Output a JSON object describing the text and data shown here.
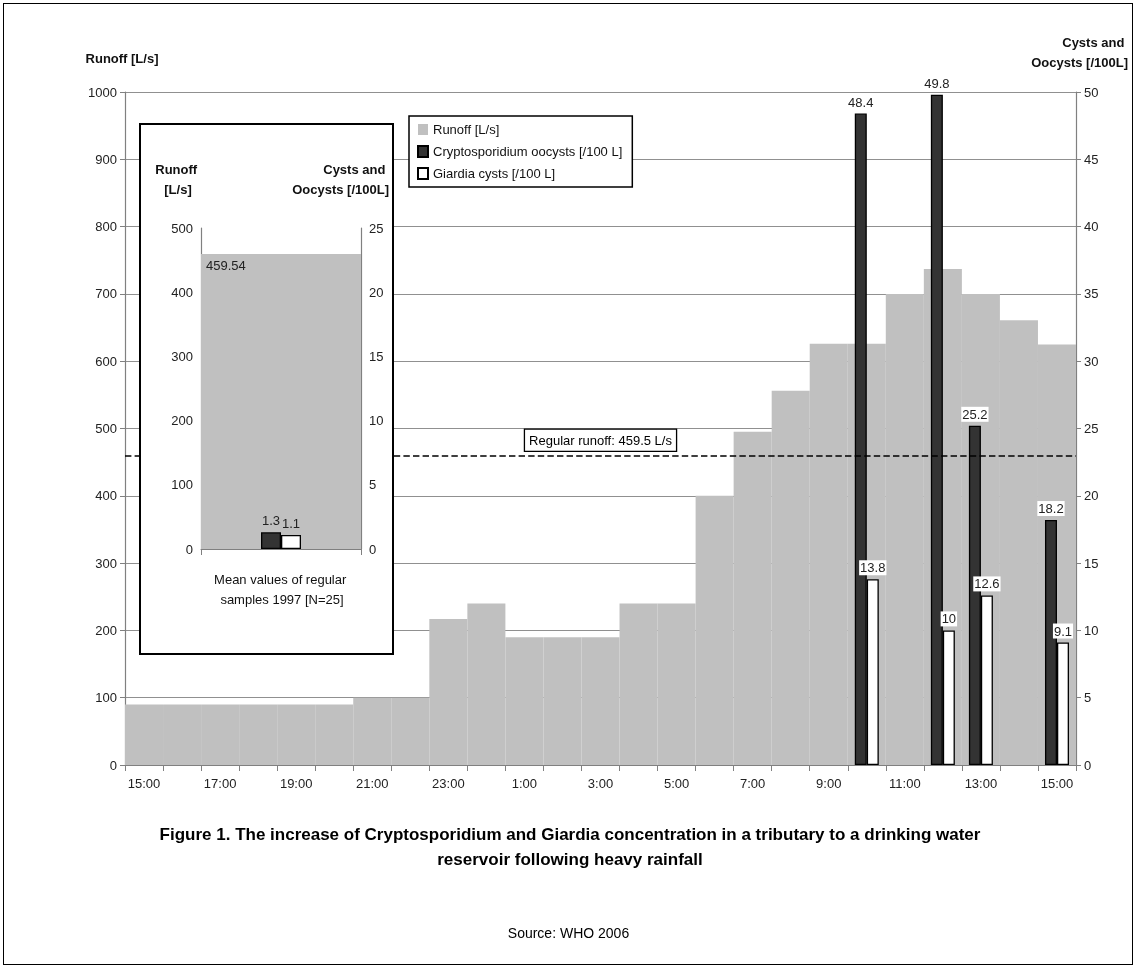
{
  "chart_data": [
    {
      "type": "bar",
      "title": "Figure 1. The increase of Cryptosporidium and Giardia concentration in a tributary to a drinking water reservoir following heavy rainfall",
      "ylabel": "Runoff [L/s]",
      "y2label": "Cysts and Oocysts [/100L]",
      "annotations": [
        "Source: WHO 2006"
      ],
      "categories": [
        "15:00",
        null,
        "17:00",
        null,
        "19:00",
        null,
        "21:00",
        null,
        "23:00",
        null,
        "1:00",
        null,
        "3:00",
        null,
        "5:00",
        null,
        "7:00",
        null,
        "9:00",
        null,
        "11:00",
        null,
        "13:00",
        null,
        "15:00"
      ],
      "series": [
        {
          "name": "Runoff [L/s]",
          "color": "#c0c0c0",
          "values": [
            90,
            90,
            90,
            90,
            90,
            90,
            100,
            100,
            217,
            240,
            190,
            190,
            190,
            240,
            240,
            400,
            495,
            556,
            626,
            626,
            700,
            737,
            700,
            661,
            625
          ]
        },
        {
          "name": "Cryptosporidium oocysts [/100 L]",
          "color": "#333333",
          "axis": "y2",
          "values": [
            null,
            null,
            null,
            null,
            null,
            null,
            null,
            null,
            null,
            null,
            null,
            null,
            null,
            null,
            null,
            null,
            null,
            null,
            null,
            48.4,
            null,
            49.8,
            25.2,
            null,
            18.2
          ],
          "value_labels": [
            null,
            null,
            null,
            null,
            null,
            null,
            null,
            null,
            null,
            null,
            null,
            null,
            null,
            null,
            null,
            null,
            null,
            null,
            null,
            "48.4",
            null,
            "49.8",
            "25.2",
            null,
            "18.2"
          ]
        },
        {
          "name": "Giardia cysts [/100 L]",
          "color": "#ffffff",
          "axis": "y2",
          "values": [
            null,
            null,
            null,
            null,
            null,
            null,
            null,
            null,
            null,
            null,
            null,
            null,
            null,
            null,
            null,
            null,
            null,
            null,
            null,
            13.8,
            null,
            10,
            12.6,
            null,
            9.1
          ],
          "value_labels": [
            null,
            null,
            null,
            null,
            null,
            null,
            null,
            null,
            null,
            null,
            null,
            null,
            null,
            null,
            null,
            null,
            null,
            null,
            null,
            "13.8",
            null,
            "10",
            "12.6",
            null,
            "9.1"
          ]
        }
      ],
      "ylim": [
        0,
        1000
      ],
      "yticks": [
        0,
        100,
        200,
        300,
        400,
        500,
        600,
        700,
        800,
        900,
        1000
      ],
      "y2lim": [
        0,
        50
      ],
      "y2ticks": [
        0,
        5,
        10,
        15,
        20,
        25,
        30,
        35,
        40,
        45,
        50
      ],
      "grid": "y",
      "legend": "top",
      "ref_lines": [
        {
          "axis": "y",
          "value": 459.5,
          "label": "Regular runoff: 459.5 L/s",
          "color": "#000000",
          "line_style": "dashed"
        }
      ]
    },
    {
      "type": "bar",
      "ylabel": "Runoff [L/s]",
      "y2label": "Cysts and Oocysts [/100L]",
      "xlabel": "Mean values of regular samples 1997 [N=25]",
      "categories": [
        null
      ],
      "series": [
        {
          "color": "#c0c0c0",
          "values": [
            459.54
          ],
          "value_labels": [
            "459.54"
          ]
        },
        {
          "color": "#333333",
          "axis": "y2",
          "values": [
            1.3
          ],
          "value_labels": [
            "1.3"
          ]
        },
        {
          "color": "#ffffff",
          "axis": "y2",
          "values": [
            1.1
          ],
          "value_labels": [
            "1.1"
          ]
        }
      ],
      "ylim": [
        0,
        500
      ],
      "yticks": [
        0,
        100,
        200,
        300,
        400,
        500
      ],
      "y2lim": [
        0,
        25
      ],
      "y2ticks": [
        0,
        5,
        10,
        15,
        20,
        25
      ],
      "tick_labels": "y"
    }
  ]
}
